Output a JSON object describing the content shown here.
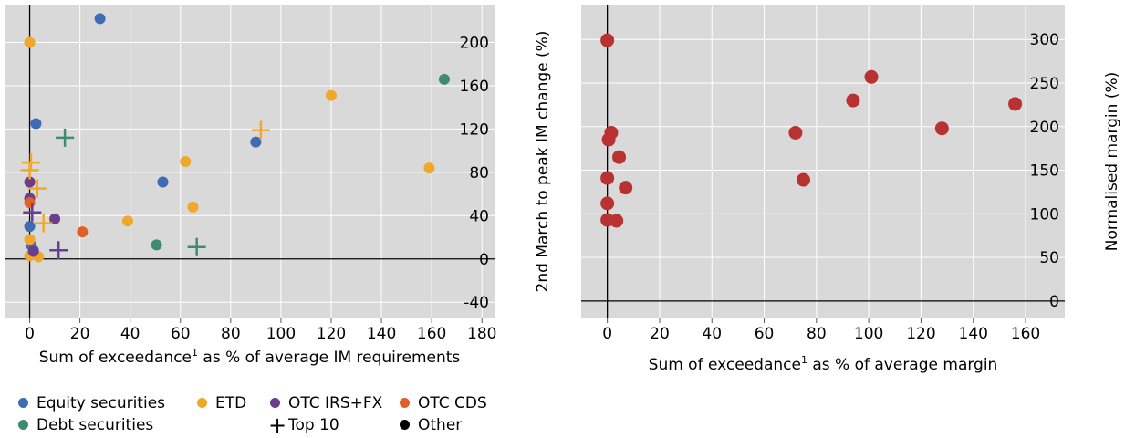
{
  "colors": {
    "equity": "#3d6cb4",
    "etd": "#f0a82c",
    "otc_irs_fx": "#6a3d8f",
    "otc_cds": "#e0602a",
    "debt": "#3d8c72",
    "other": "#000000",
    "normalised": "#b93232",
    "plot_bg": "#d9d9d9",
    "grid": "#ffffff"
  },
  "chart_data": [
    {
      "type": "scatter",
      "xlabel": "Sum of exceedance",
      "xlabel_sup": "1",
      "xlabel_tail": " as % of average IM requirements",
      "ylabel": "2nd March to peak IM change (%)",
      "xlim": [
        -10,
        185
      ],
      "ylim": [
        -55,
        235
      ],
      "xticks": [
        0,
        20,
        40,
        60,
        80,
        100,
        120,
        140,
        160,
        180
      ],
      "yticks": [
        -40,
        0,
        40,
        80,
        120,
        160,
        200
      ],
      "y_axis_side": "right",
      "grid": true,
      "series": [
        {
          "name": "Equity securities",
          "key": "equity",
          "marker": "circle",
          "points": [
            [
              28,
              222
            ],
            [
              2.5,
              125
            ],
            [
              53,
              71
            ],
            [
              90,
              108
            ],
            [
              0,
              30
            ],
            [
              0.5,
              13
            ],
            [
              1.5,
              8
            ]
          ]
        },
        {
          "name": "ETD",
          "key": "etd",
          "marker": "circle",
          "points": [
            [
              0,
              200
            ],
            [
              120,
              151
            ],
            [
              62,
              90
            ],
            [
              159,
              84
            ],
            [
              65,
              48
            ],
            [
              39,
              35
            ],
            [
              0,
              18
            ],
            [
              0,
              3
            ],
            [
              3.5,
              2
            ]
          ]
        },
        {
          "name": "OTC IRS+FX",
          "key": "otc_irs_fx",
          "marker": "circle",
          "points": [
            [
              0,
              71
            ],
            [
              0,
              56
            ],
            [
              10,
              37
            ],
            [
              1.5,
              7
            ]
          ]
        },
        {
          "name": "OTC CDS",
          "key": "otc_cds",
          "marker": "circle",
          "points": [
            [
              0,
              52
            ],
            [
              21,
              25
            ]
          ]
        },
        {
          "name": "Debt securities",
          "key": "debt",
          "marker": "circle",
          "points": [
            [
              165,
              166
            ],
            [
              50.5,
              13
            ]
          ]
        },
        {
          "name": "Top 10",
          "key": "etd",
          "marker": "plus",
          "points": [
            [
              0.5,
              89
            ],
            [
              0,
              82
            ],
            [
              3,
              65
            ],
            [
              5.5,
              33
            ],
            [
              92,
              119
            ]
          ]
        },
        {
          "name": "Top 10",
          "key": "otc_irs_fx",
          "marker": "plus",
          "points": [
            [
              1,
              43
            ],
            [
              11.5,
              8
            ]
          ]
        },
        {
          "name": "Top 10",
          "key": "debt",
          "marker": "plus",
          "points": [
            [
              14,
              112
            ],
            [
              66.5,
              11
            ]
          ]
        }
      ]
    },
    {
      "type": "scatter",
      "xlabel": "Sum of exceedance",
      "xlabel_sup": "1",
      "xlabel_tail": " as % of average margin",
      "ylabel": "Normalised margin (%)",
      "xlim": [
        -10,
        175
      ],
      "ylim": [
        -20,
        340
      ],
      "xticks": [
        0,
        20,
        40,
        60,
        80,
        100,
        120,
        140,
        160
      ],
      "yticks": [
        0,
        50,
        100,
        150,
        200,
        250,
        300
      ],
      "y_axis_side": "right",
      "grid": true,
      "series": [
        {
          "name": "",
          "key": "normalised",
          "marker": "circle",
          "points": [
            [
              0,
              299
            ],
            [
              101,
              257
            ],
            [
              94,
              230
            ],
            [
              156,
              226
            ],
            [
              128,
              198
            ],
            [
              72,
              193
            ],
            [
              1.5,
              193
            ],
            [
              0.5,
              185
            ],
            [
              4.5,
              165
            ],
            [
              75,
              139
            ],
            [
              0,
              141
            ],
            [
              7,
              130
            ],
            [
              0,
              112
            ],
            [
              0,
              93
            ],
            [
              3.5,
              92
            ]
          ]
        }
      ]
    }
  ],
  "legend": {
    "equity": "Equity securities",
    "etd": "ETD",
    "otc_irs_fx": "OTC IRS+FX",
    "otc_cds": "OTC CDS",
    "debt": "Debt securities",
    "top10": "Top 10",
    "other": "Other"
  }
}
